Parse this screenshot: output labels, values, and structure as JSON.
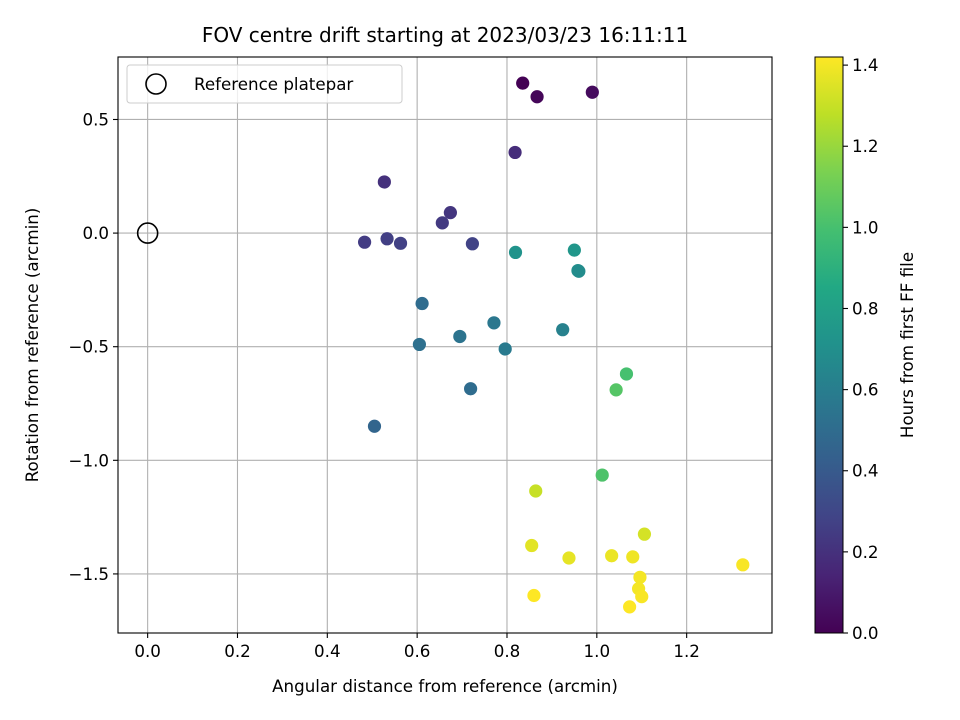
{
  "chart_data": {
    "type": "scatter",
    "title": "FOV centre drift starting at 2023/03/23 16:11:11",
    "xlabel": "Angular distance from reference (arcmin)",
    "ylabel": "Rotation from reference (arcmin)",
    "xlim": [
      -0.066,
      1.39
    ],
    "ylim": [
      -1.76,
      0.775
    ],
    "xticks": [
      0.0,
      0.2,
      0.4,
      0.6,
      0.8,
      1.0,
      1.2
    ],
    "xtick_labels": [
      "0.0",
      "0.2",
      "0.4",
      "0.6",
      "0.8",
      "1.0",
      "1.2"
    ],
    "yticks": [
      0.5,
      0.0,
      -0.5,
      -1.0,
      -1.5
    ],
    "ytick_labels": [
      "0.5",
      "0.0",
      "−0.5",
      "−1.0",
      "−1.5"
    ],
    "grid": true,
    "legend": {
      "position": "top-left",
      "entries": [
        "Reference platepar"
      ]
    },
    "reference_point": {
      "x": 0.0,
      "y": 0.0
    },
    "colorbar": {
      "label": "Hours from first FF file",
      "range": [
        0.0,
        1.42
      ],
      "ticks": [
        0.0,
        0.2,
        0.4,
        0.6,
        0.8,
        1.0,
        1.2,
        1.4
      ],
      "tick_labels": [
        "0.0",
        "0.2",
        "0.4",
        "0.6",
        "0.8",
        "1.0",
        "1.2",
        "1.4"
      ],
      "colormap": "viridis"
    },
    "points": [
      {
        "x": 0.835,
        "y": 0.66,
        "hours": 0.0
      },
      {
        "x": 0.867,
        "y": 0.6,
        "hours": 0.02
      },
      {
        "x": 0.99,
        "y": 0.62,
        "hours": 0.04
      },
      {
        "x": 0.818,
        "y": 0.355,
        "hours": 0.18
      },
      {
        "x": 0.527,
        "y": 0.225,
        "hours": 0.2
      },
      {
        "x": 0.674,
        "y": 0.09,
        "hours": 0.22
      },
      {
        "x": 0.656,
        "y": 0.045,
        "hours": 0.24
      },
      {
        "x": 0.483,
        "y": -0.04,
        "hours": 0.25
      },
      {
        "x": 0.533,
        "y": -0.025,
        "hours": 0.26
      },
      {
        "x": 0.563,
        "y": -0.045,
        "hours": 0.27
      },
      {
        "x": 0.723,
        "y": -0.047,
        "hours": 0.28
      },
      {
        "x": 0.611,
        "y": -0.31,
        "hours": 0.5
      },
      {
        "x": 0.605,
        "y": -0.49,
        "hours": 0.52
      },
      {
        "x": 0.695,
        "y": -0.455,
        "hours": 0.54
      },
      {
        "x": 0.771,
        "y": -0.395,
        "hours": 0.56
      },
      {
        "x": 0.796,
        "y": -0.51,
        "hours": 0.58
      },
      {
        "x": 0.719,
        "y": -0.685,
        "hours": 0.5
      },
      {
        "x": 0.505,
        "y": -0.85,
        "hours": 0.46
      },
      {
        "x": 0.924,
        "y": -0.425,
        "hours": 0.62
      },
      {
        "x": 0.819,
        "y": -0.085,
        "hours": 0.72
      },
      {
        "x": 0.95,
        "y": -0.075,
        "hours": 0.74
      },
      {
        "x": 0.958,
        "y": -0.165,
        "hours": 0.7
      },
      {
        "x": 0.96,
        "y": -0.168,
        "hours": 0.68
      },
      {
        "x": 1.066,
        "y": -0.62,
        "hours": 1.0
      },
      {
        "x": 1.043,
        "y": -0.69,
        "hours": 1.04
      },
      {
        "x": 1.012,
        "y": -1.065,
        "hours": 1.02
      },
      {
        "x": 0.864,
        "y": -1.135,
        "hours": 1.3
      },
      {
        "x": 0.855,
        "y": -1.375,
        "hours": 1.36
      },
      {
        "x": 0.938,
        "y": -1.43,
        "hours": 1.37
      },
      {
        "x": 1.033,
        "y": -1.42,
        "hours": 1.38
      },
      {
        "x": 1.08,
        "y": -1.425,
        "hours": 1.39
      },
      {
        "x": 1.106,
        "y": -1.325,
        "hours": 1.33
      },
      {
        "x": 1.325,
        "y": -1.46,
        "hours": 1.41
      },
      {
        "x": 1.096,
        "y": -1.515,
        "hours": 1.4
      },
      {
        "x": 1.093,
        "y": -1.565,
        "hours": 1.4
      },
      {
        "x": 1.1,
        "y": -1.6,
        "hours": 1.41
      },
      {
        "x": 1.073,
        "y": -1.645,
        "hours": 1.42
      },
      {
        "x": 0.86,
        "y": -1.595,
        "hours": 1.42
      }
    ]
  }
}
